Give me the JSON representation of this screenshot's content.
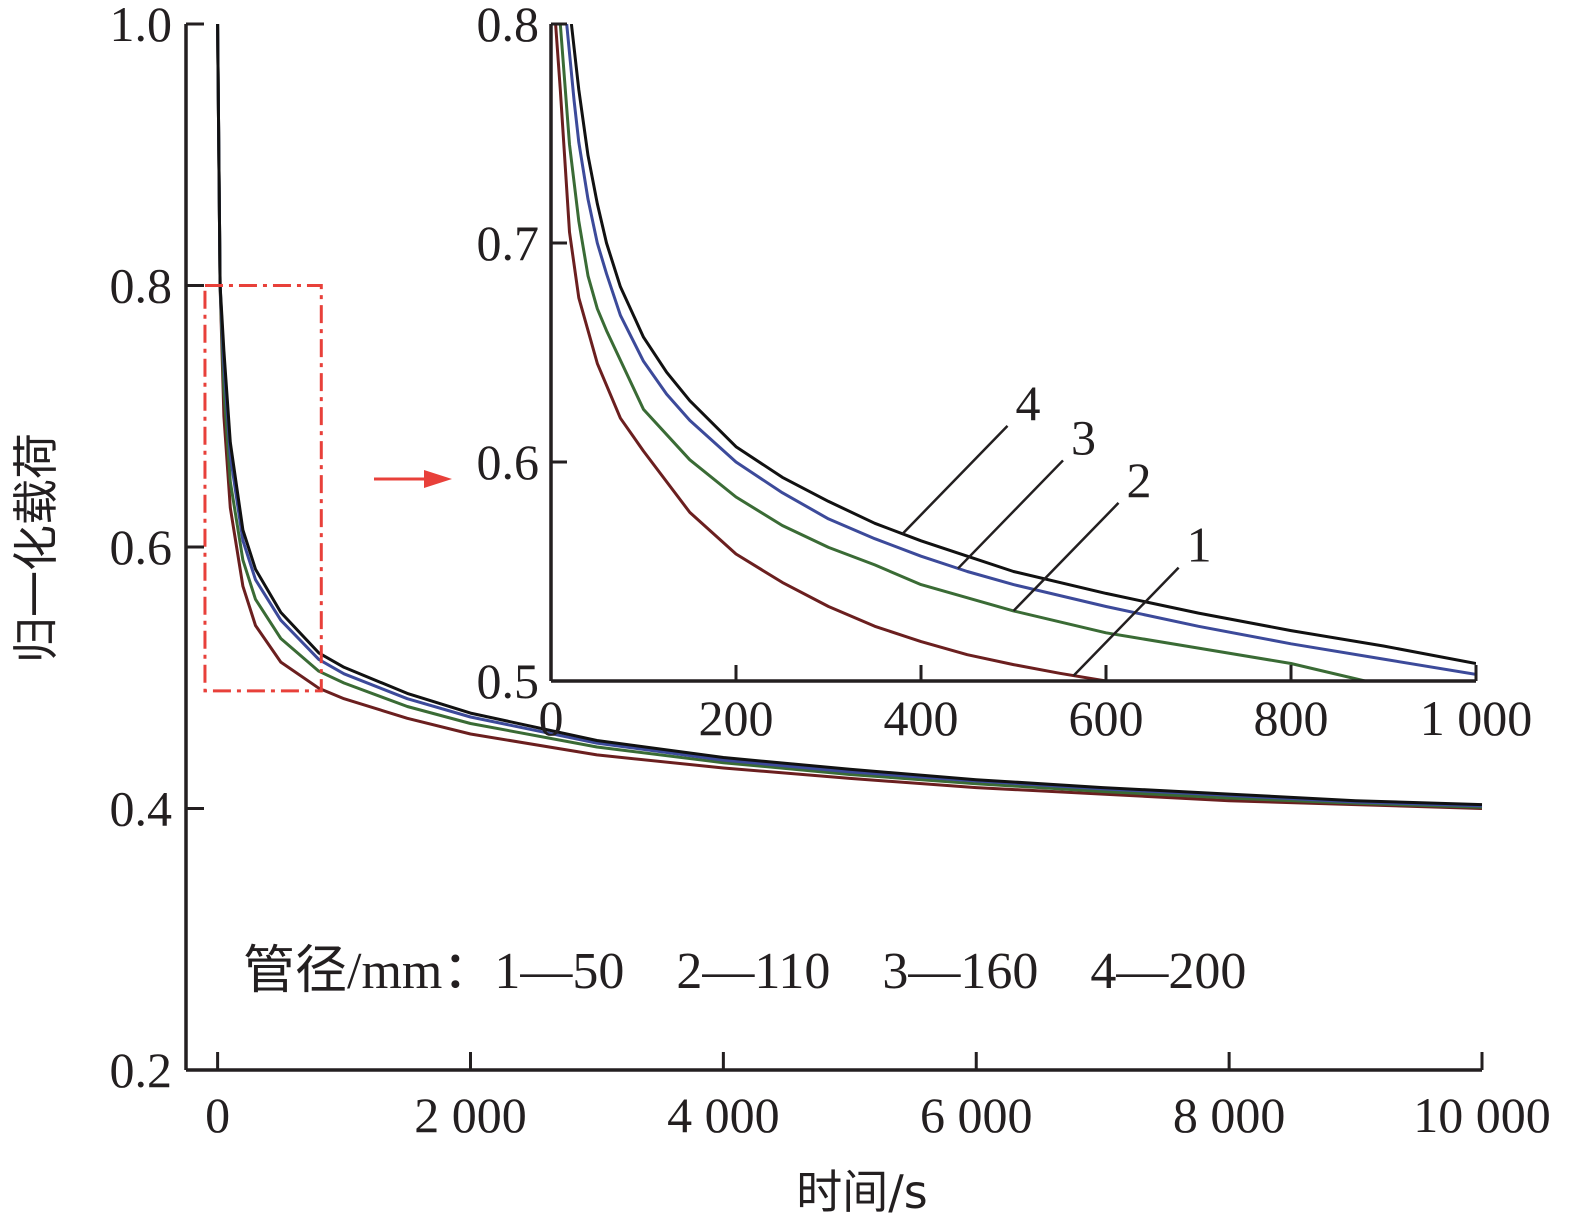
{
  "chart_data": [
    {
      "type": "line",
      "xlabel": "时间/s",
      "ylabel": "归一化载荷",
      "xlim": [
        -250,
        10000
      ],
      "ylim": [
        0.2,
        1.0
      ],
      "x_ticks": [
        0,
        2000,
        4000,
        6000,
        8000,
        10000
      ],
      "x_tick_labels": [
        "0",
        "2 000",
        "4 000",
        "6 000",
        "8 000",
        "10 000"
      ],
      "y_ticks": [
        0.2,
        0.4,
        0.6,
        0.8,
        1.0
      ],
      "y_tick_labels": [
        "0.2",
        "0.4",
        "0.6",
        "0.8",
        "1.0"
      ],
      "grid": false,
      "legend_text": "管径/mm：1—50　2—110　3—160　4—200",
      "legend_placement": "bottom",
      "zoom_box": {
        "x": [
          -100,
          820
        ],
        "y": [
          0.49,
          0.8
        ],
        "color": "#e8403a"
      },
      "series": [
        {
          "name": "1",
          "color": "#6b1f1f",
          "x": [
            0,
            20,
            50,
            100,
            200,
            300,
            500,
            800,
            1000,
            1500,
            2000,
            3000,
            4000,
            5000,
            6000,
            7000,
            8000,
            9000,
            10000
          ],
          "values": [
            1.0,
            0.8,
            0.7,
            0.63,
            0.57,
            0.54,
            0.512,
            0.492,
            0.484,
            0.469,
            0.457,
            0.441,
            0.431,
            0.423,
            0.416,
            0.411,
            0.406,
            0.403,
            0.4
          ]
        },
        {
          "name": "2",
          "color": "#3a6b35",
          "x": [
            0,
            20,
            50,
            100,
            200,
            300,
            500,
            800,
            1000,
            1500,
            2000,
            3000,
            4000,
            5000,
            6000,
            7000,
            8000,
            9000,
            10000
          ],
          "values": [
            1.0,
            0.8,
            0.72,
            0.65,
            0.59,
            0.56,
            0.53,
            0.505,
            0.496,
            0.478,
            0.465,
            0.447,
            0.435,
            0.426,
            0.419,
            0.413,
            0.408,
            0.404,
            0.401
          ]
        },
        {
          "name": "3",
          "color": "#3c4a9a",
          "x": [
            0,
            20,
            50,
            100,
            200,
            300,
            500,
            800,
            1000,
            1500,
            2000,
            3000,
            4000,
            5000,
            6000,
            7000,
            8000,
            9000,
            10000
          ],
          "values": [
            1.0,
            0.8,
            0.74,
            0.67,
            0.605,
            0.575,
            0.544,
            0.514,
            0.503,
            0.484,
            0.47,
            0.45,
            0.437,
            0.428,
            0.421,
            0.415,
            0.41,
            0.405,
            0.402
          ]
        },
        {
          "name": "4",
          "color": "#111111",
          "x": [
            0,
            20,
            50,
            100,
            200,
            300,
            500,
            800,
            1000,
            1500,
            2000,
            3000,
            4000,
            5000,
            6000,
            7000,
            8000,
            9000,
            10000
          ],
          "values": [
            1.0,
            0.8,
            0.75,
            0.68,
            0.613,
            0.583,
            0.55,
            0.519,
            0.508,
            0.488,
            0.473,
            0.452,
            0.439,
            0.43,
            0.422,
            0.416,
            0.411,
            0.406,
            0.403
          ]
        }
      ]
    },
    {
      "type": "line",
      "xlabel": "",
      "ylabel": "",
      "xlim": [
        0,
        1000
      ],
      "ylim": [
        0.5,
        0.8
      ],
      "x_ticks": [
        0,
        200,
        400,
        600,
        800,
        1000
      ],
      "x_tick_labels": [
        "0",
        "200",
        "400",
        "600",
        "800",
        "1 000"
      ],
      "y_ticks": [
        0.5,
        0.6,
        0.7,
        0.8
      ],
      "y_tick_labels": [
        "0.5",
        "0.6",
        "0.7",
        "0.8"
      ],
      "grid": false,
      "series": [
        {
          "name": "1",
          "color": "#6b1f1f",
          "x": [
            5,
            10,
            20,
            30,
            50,
            75,
            100,
            150,
            200,
            250,
            300,
            350,
            400,
            450,
            500,
            550,
            600,
            650,
            685
          ],
          "values": [
            0.8,
            0.77,
            0.705,
            0.675,
            0.645,
            0.62,
            0.605,
            0.577,
            0.558,
            0.545,
            0.534,
            0.525,
            0.518,
            0.512,
            0.5075,
            0.5035,
            0.5,
            0.4975,
            0.496
          ]
        },
        {
          "name": "2",
          "color": "#3a6b35",
          "x": [
            10,
            20,
            30,
            40,
            50,
            60,
            100,
            150,
            200,
            250,
            300,
            350,
            400,
            500,
            600,
            700,
            800,
            880
          ],
          "values": [
            0.8,
            0.745,
            0.71,
            0.685,
            0.67,
            0.66,
            0.624,
            0.601,
            0.584,
            0.571,
            0.561,
            0.553,
            0.544,
            0.532,
            0.522,
            0.515,
            0.508,
            0.5
          ]
        },
        {
          "name": "3",
          "color": "#3c4a9a",
          "x": [
            17,
            25,
            30,
            40,
            50,
            60,
            75,
            100,
            125,
            150,
            200,
            250,
            300,
            350,
            400,
            450,
            500,
            600,
            700,
            800,
            900,
            1000
          ],
          "values": [
            0.8,
            0.765,
            0.746,
            0.72,
            0.7,
            0.686,
            0.667,
            0.646,
            0.631,
            0.619,
            0.6,
            0.586,
            0.574,
            0.565,
            0.557,
            0.55,
            0.544,
            0.534,
            0.525,
            0.517,
            0.51,
            0.503
          ]
        },
        {
          "name": "4",
          "color": "#111111",
          "x": [
            22,
            30,
            40,
            50,
            60,
            75,
            100,
            125,
            150,
            200,
            250,
            300,
            350,
            400,
            450,
            500,
            600,
            700,
            800,
            900,
            1000
          ],
          "values": [
            0.8,
            0.77,
            0.74,
            0.718,
            0.7,
            0.68,
            0.657,
            0.641,
            0.628,
            0.607,
            0.593,
            0.582,
            0.572,
            0.564,
            0.557,
            0.55,
            0.54,
            0.531,
            0.523,
            0.516,
            0.508
          ]
        }
      ],
      "curve_labels": [
        {
          "text": "4",
          "series": "4",
          "at_x": 380
        },
        {
          "text": "3",
          "series": "3",
          "at_x": 440
        },
        {
          "text": "2",
          "series": "2",
          "at_x": 500
        },
        {
          "text": "1",
          "series": "1",
          "at_x": 565
        }
      ]
    }
  ]
}
